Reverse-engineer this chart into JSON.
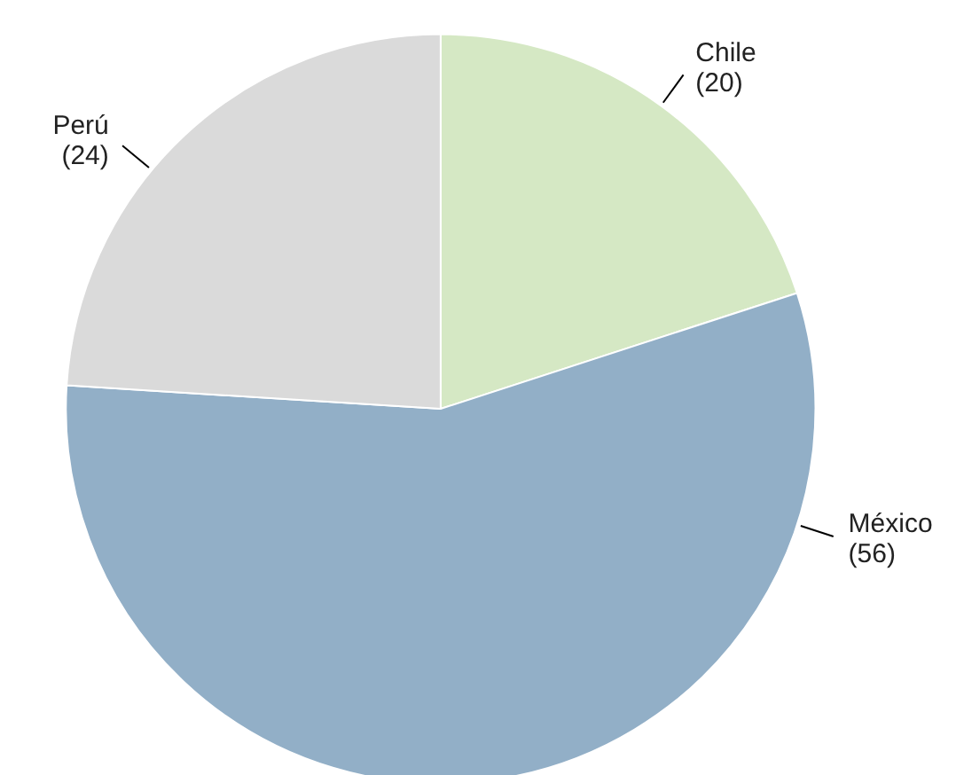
{
  "chart_data": {
    "type": "pie",
    "categories": [
      "Chile",
      "México",
      "Perú"
    ],
    "values": [
      20,
      56,
      24
    ],
    "colors": [
      "#d5e8c4",
      "#92afc7",
      "#dadada"
    ],
    "value_labels": [
      "(20)",
      "(56)",
      "(24)"
    ]
  }
}
